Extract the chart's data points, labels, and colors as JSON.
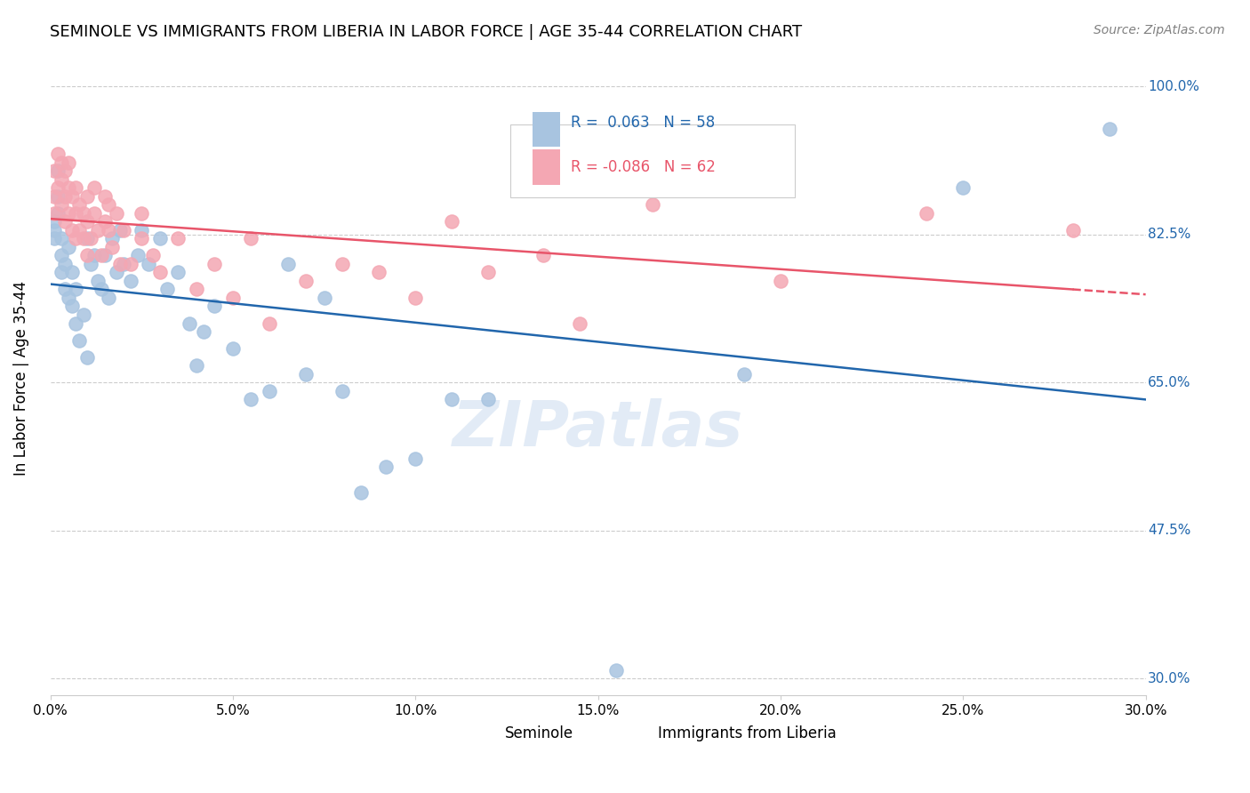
{
  "title": "SEMINOLE VS IMMIGRANTS FROM LIBERIA IN LABOR FORCE | AGE 35-44 CORRELATION CHART",
  "source": "Source: ZipAtlas.com",
  "xlabel_bottom": "",
  "ylabel": "In Labor Force | Age 35-44",
  "xmin": 0.0,
  "xmax": 0.3,
  "ymin": 0.28,
  "ymax": 1.03,
  "yticks": [
    0.3,
    0.475,
    0.65,
    0.825,
    1.0
  ],
  "ytick_labels": [
    "30.0%",
    "47.5%",
    "65.0%",
    "82.5%",
    "100.0%"
  ],
  "xticks": [
    0.0,
    0.05,
    0.1,
    0.15,
    0.2,
    0.25,
    0.3
  ],
  "xtick_labels": [
    "0.0%",
    "5.0%",
    "10.0%",
    "15.0%",
    "20.0%",
    "25.0%",
    "30.0%"
  ],
  "legend_entries": [
    {
      "label": "R =  0.063   N = 58",
      "color": "#a8c4e0"
    },
    {
      "label": "R = -0.086   N = 62",
      "color": "#f4a7b3"
    }
  ],
  "seminole_label": "Seminole",
  "liberia_label": "Immigrants from Liberia",
  "blue_R": 0.063,
  "blue_N": 58,
  "pink_R": -0.086,
  "pink_N": 62,
  "blue_color": "#a8c4e0",
  "pink_color": "#f4a7b3",
  "blue_line_color": "#2166ac",
  "pink_line_color": "#e8556a",
  "watermark": "ZIPatlas",
  "blue_x": [
    0.001,
    0.001,
    0.001,
    0.002,
    0.002,
    0.002,
    0.003,
    0.003,
    0.003,
    0.004,
    0.004,
    0.005,
    0.005,
    0.006,
    0.006,
    0.007,
    0.007,
    0.008,
    0.009,
    0.01,
    0.01,
    0.011,
    0.012,
    0.013,
    0.014,
    0.015,
    0.016,
    0.017,
    0.018,
    0.019,
    0.02,
    0.022,
    0.024,
    0.025,
    0.027,
    0.03,
    0.032,
    0.035,
    0.038,
    0.04,
    0.042,
    0.045,
    0.05,
    0.055,
    0.06,
    0.065,
    0.07,
    0.075,
    0.08,
    0.085,
    0.092,
    0.1,
    0.11,
    0.12,
    0.155,
    0.19,
    0.25,
    0.29
  ],
  "blue_y": [
    0.82,
    0.83,
    0.84,
    0.85,
    0.87,
    0.9,
    0.78,
    0.8,
    0.82,
    0.76,
    0.79,
    0.75,
    0.81,
    0.74,
    0.78,
    0.72,
    0.76,
    0.7,
    0.73,
    0.68,
    0.82,
    0.79,
    0.8,
    0.77,
    0.76,
    0.8,
    0.75,
    0.82,
    0.78,
    0.83,
    0.79,
    0.77,
    0.8,
    0.83,
    0.79,
    0.82,
    0.76,
    0.78,
    0.72,
    0.67,
    0.71,
    0.74,
    0.69,
    0.63,
    0.64,
    0.79,
    0.66,
    0.75,
    0.64,
    0.52,
    0.55,
    0.56,
    0.63,
    0.63,
    0.31,
    0.66,
    0.88,
    0.95
  ],
  "pink_x": [
    0.001,
    0.001,
    0.001,
    0.002,
    0.002,
    0.003,
    0.003,
    0.003,
    0.004,
    0.004,
    0.004,
    0.005,
    0.005,
    0.005,
    0.006,
    0.006,
    0.007,
    0.007,
    0.007,
    0.008,
    0.008,
    0.009,
    0.009,
    0.01,
    0.01,
    0.01,
    0.011,
    0.012,
    0.012,
    0.013,
    0.014,
    0.015,
    0.015,
    0.016,
    0.016,
    0.017,
    0.018,
    0.019,
    0.02,
    0.022,
    0.025,
    0.025,
    0.028,
    0.03,
    0.035,
    0.04,
    0.045,
    0.05,
    0.055,
    0.06,
    0.07,
    0.08,
    0.09,
    0.1,
    0.11,
    0.12,
    0.135,
    0.145,
    0.165,
    0.2,
    0.24,
    0.28
  ],
  "pink_y": [
    0.85,
    0.87,
    0.9,
    0.88,
    0.92,
    0.86,
    0.89,
    0.91,
    0.84,
    0.87,
    0.9,
    0.85,
    0.88,
    0.91,
    0.83,
    0.87,
    0.82,
    0.85,
    0.88,
    0.83,
    0.86,
    0.82,
    0.85,
    0.8,
    0.84,
    0.87,
    0.82,
    0.85,
    0.88,
    0.83,
    0.8,
    0.84,
    0.87,
    0.83,
    0.86,
    0.81,
    0.85,
    0.79,
    0.83,
    0.79,
    0.82,
    0.85,
    0.8,
    0.78,
    0.82,
    0.76,
    0.79,
    0.75,
    0.82,
    0.72,
    0.77,
    0.79,
    0.78,
    0.75,
    0.84,
    0.78,
    0.8,
    0.72,
    0.86,
    0.77,
    0.85,
    0.83
  ]
}
